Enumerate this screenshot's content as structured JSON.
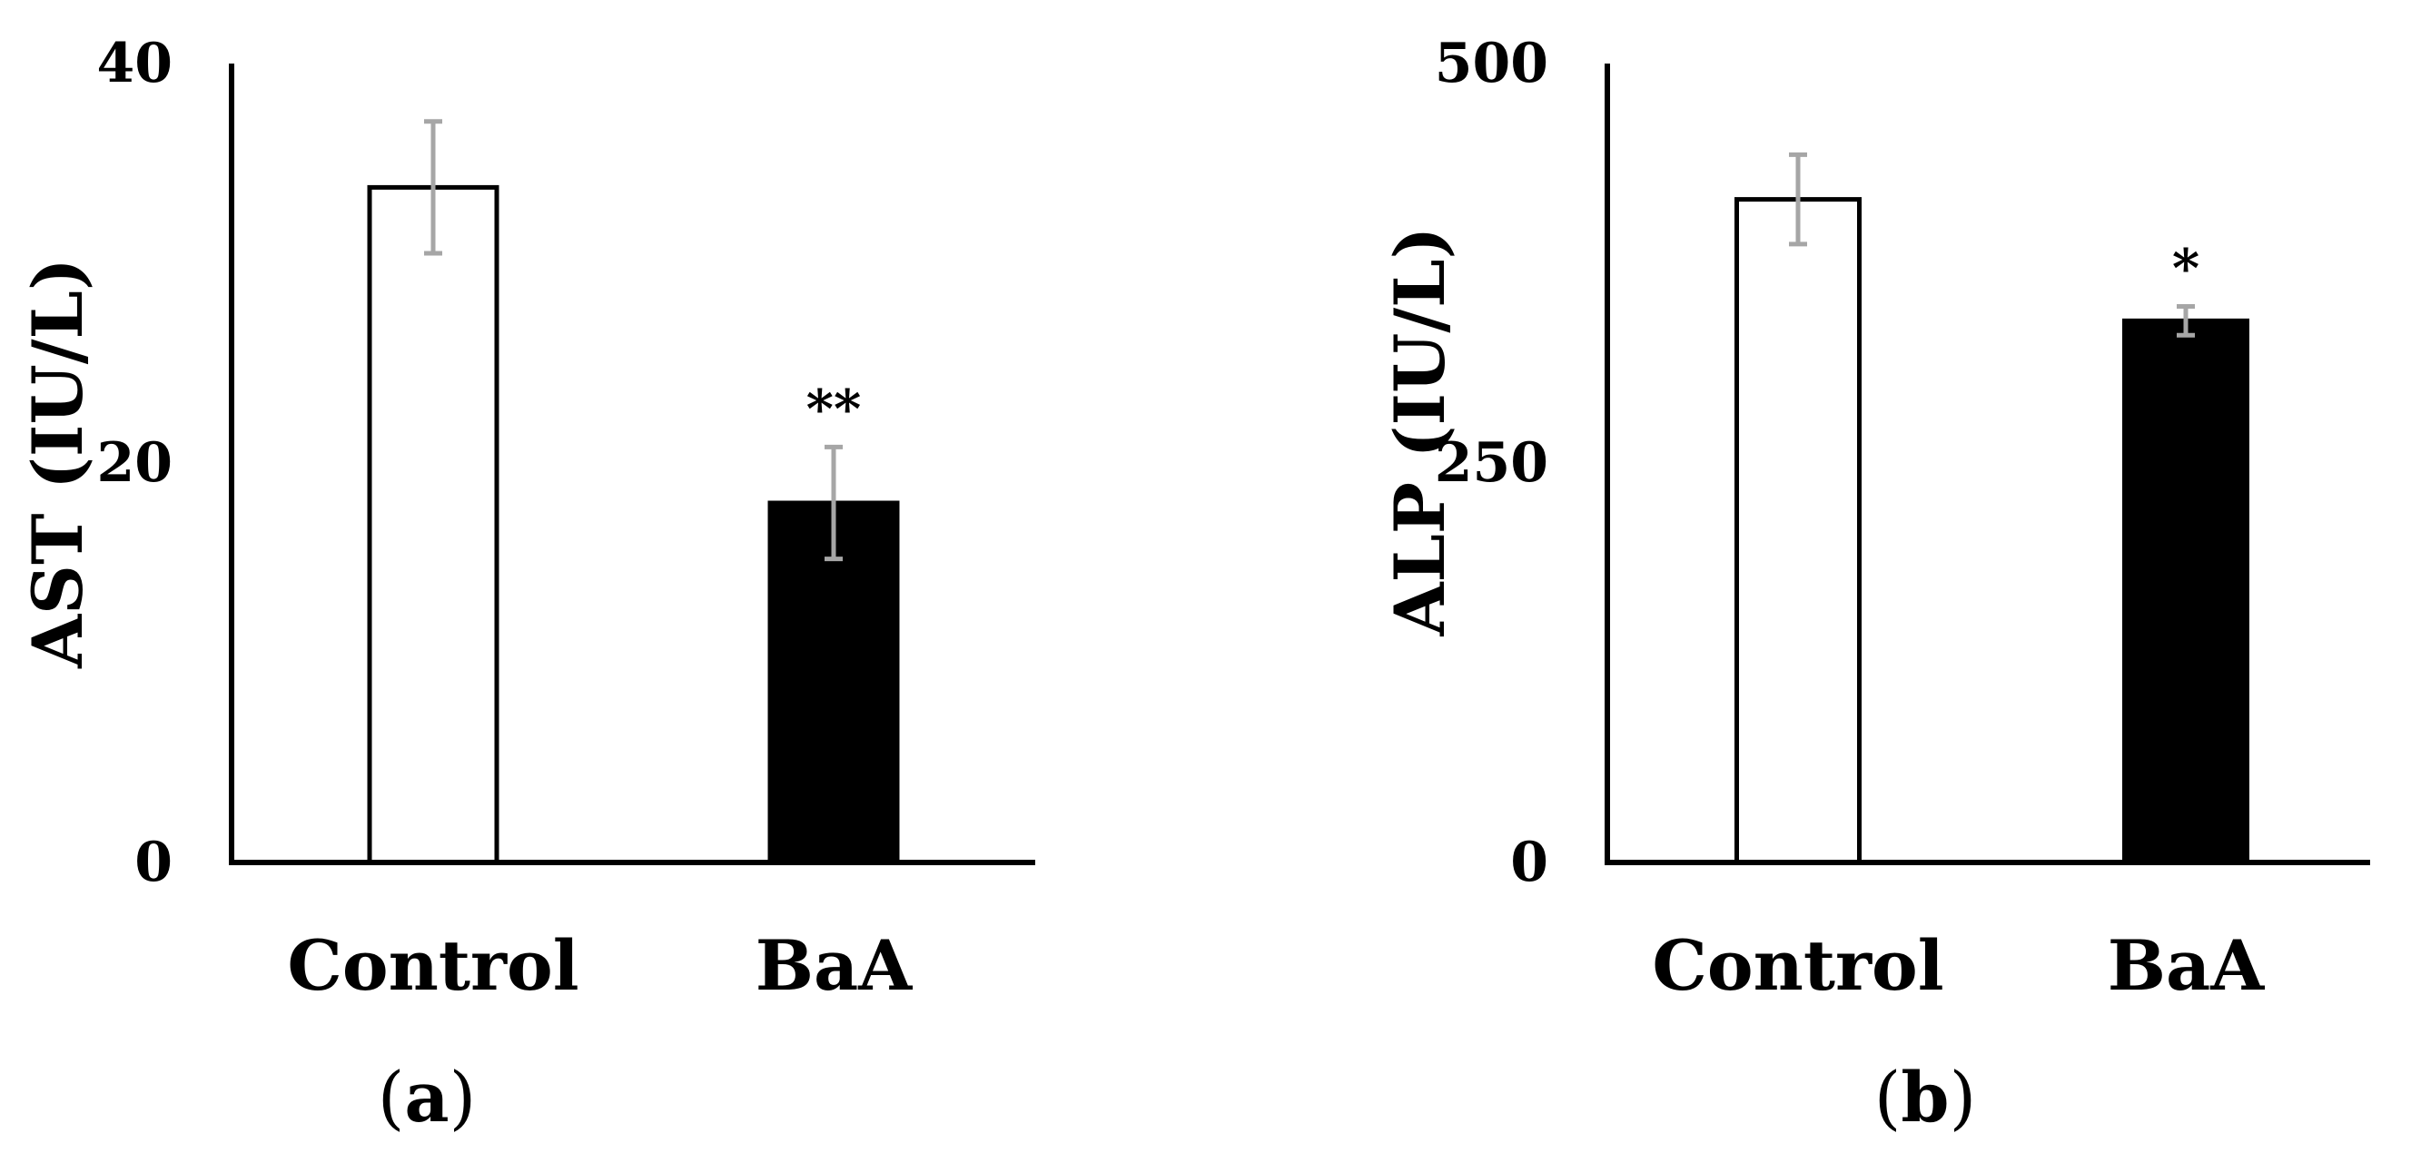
{
  "chart_data": [
    {
      "type": "bar",
      "panel_label": "a",
      "ylabel": "AST (IU/L)",
      "categories": [
        "Control",
        "BaA"
      ],
      "values": [
        33.8,
        18
      ],
      "errors": [
        3.3,
        2.8
      ],
      "significance": [
        "",
        "**"
      ],
      "ylim": [
        0,
        40
      ],
      "yticks": [
        0,
        20,
        40
      ],
      "bar_colors": [
        "#ffffff",
        "#000000"
      ],
      "error_bar_color": "#a6a6a6",
      "grid": false,
      "legend": "none"
    },
    {
      "type": "bar",
      "panel_label": "b",
      "ylabel": "ALP (IU/L)",
      "categories": [
        "Control",
        "BaA"
      ],
      "values": [
        415,
        339
      ],
      "errors": [
        28,
        9
      ],
      "significance": [
        "",
        "*"
      ],
      "ylim": [
        0,
        500
      ],
      "yticks": [
        0,
        250,
        500
      ],
      "bar_colors": [
        "#ffffff",
        "#000000"
      ],
      "error_bar_color": "#a6a6a6",
      "grid": false,
      "legend": "none"
    }
  ]
}
